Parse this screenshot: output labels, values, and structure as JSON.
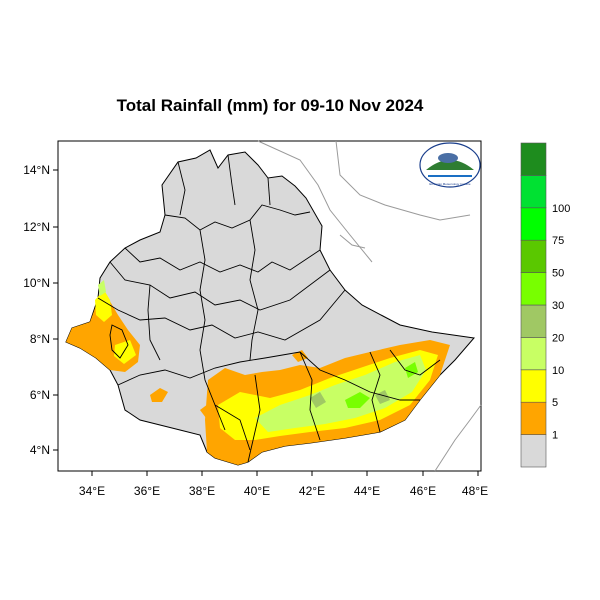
{
  "title": "Total Rainfall (mm) for 09-10 Nov 2024",
  "map": {
    "lon_range": [
      33,
      48
    ],
    "lat_range": [
      3.3,
      15
    ],
    "x_ticks": [
      "34°E",
      "36°E",
      "38°E",
      "40°E",
      "42°E",
      "44°E",
      "46°E",
      "48°E"
    ],
    "y_ticks": [
      "14°N",
      "12°N",
      "10°N",
      "8°N",
      "6°N",
      "4°N"
    ],
    "land_color": "#d9d9d9",
    "border_color": "#000000",
    "logo_text": "Ethiopian Meteorology Institute"
  },
  "legend": {
    "labels": [
      "1",
      "5",
      "10",
      "20",
      "30",
      "50",
      "75",
      "100"
    ],
    "colors": [
      "#d9d9d9",
      "#ffa500",
      "#ffff00",
      "#c8ff64",
      "#a0c864",
      "#78ff00",
      "#5ac800",
      "#00ff00",
      "#00e132",
      "#1e8c1e"
    ]
  }
}
